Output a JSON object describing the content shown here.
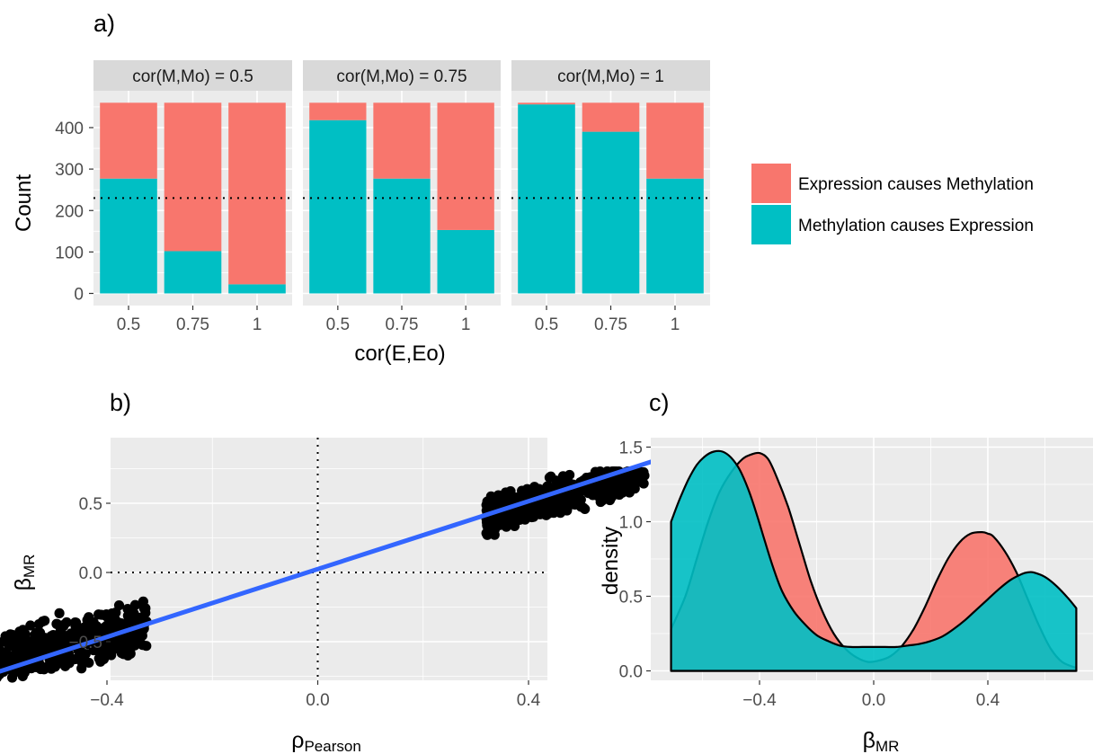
{
  "colors": {
    "expression_causes_methylation": "#F8766D",
    "methylation_causes_expression": "#00BFC4",
    "panel_background": "#EBEBEB",
    "grid": "#FFFFFF",
    "strip_background": "#D9D9D9",
    "fit_line": "#3366FF",
    "points": "#000000"
  },
  "tags": {
    "a": "a)",
    "b": "b)",
    "c": "c)"
  },
  "legend": {
    "items": [
      {
        "label": "Expression causes Methylation",
        "color": "#F8766D"
      },
      {
        "label": "Methylation causes Expression",
        "color": "#00BFC4"
      }
    ]
  },
  "chart_data": [
    {
      "id": "a",
      "type": "bar",
      "stacked": true,
      "xlabel": "cor(E,Eo)",
      "ylabel": "Count",
      "ylim": [
        0,
        460
      ],
      "yticks": [
        0,
        100,
        200,
        300,
        400
      ],
      "ytick_labels": [
        "0",
        "100",
        "200",
        "300",
        "400"
      ],
      "reference_line_y": 230,
      "categories": [
        "0.5",
        "0.75",
        "1"
      ],
      "facets": [
        {
          "label": "cor(M,Mo) = 0.5",
          "series": [
            {
              "name": "Methylation causes Expression",
              "values": [
                277,
                102,
                22
              ]
            },
            {
              "name": "Expression causes Methylation",
              "values": [
                183,
                358,
                438
              ]
            }
          ]
        },
        {
          "label": "cor(M,Mo) = 0.75",
          "series": [
            {
              "name": "Methylation causes Expression",
              "values": [
                418,
                277,
                153
              ]
            },
            {
              "name": "Expression causes Methylation",
              "values": [
                42,
                183,
                307
              ]
            }
          ]
        },
        {
          "label": "cor(M,Mo) = 1",
          "series": [
            {
              "name": "Methylation causes Expression",
              "values": [
                456,
                390,
                277
              ]
            },
            {
              "name": "Expression causes Methylation",
              "values": [
                4,
                70,
                183
              ]
            }
          ]
        }
      ]
    },
    {
      "id": "b",
      "type": "scatter",
      "xlabel_main": "ρ",
      "xlabel_sub": "Pearson",
      "ylabel_main": "β",
      "ylabel_sub": "MR",
      "xlim": [
        -0.68,
        0.73
      ],
      "ylim": [
        -0.82,
        0.9
      ],
      "xticks": [
        -0.4,
        0.0,
        0.4
      ],
      "xtick_labels": [
        "−0.4",
        "0.0",
        "0.4"
      ],
      "yticks": [
        -0.5,
        0.0,
        0.5
      ],
      "ytick_labels": [
        "−0.5",
        "0.0",
        "0.5"
      ],
      "reference_lines": {
        "x": 0.0,
        "y": 0.0
      },
      "fit_line": {
        "x": [
          -0.64,
          0.69
        ],
        "y": [
          -0.76,
          0.87
        ]
      },
      "clusters": [
        {
          "x_range": [
            -0.65,
            -0.32
          ],
          "y_center_slope": 0.9,
          "y_spread": 0.32,
          "n": 460
        },
        {
          "x_range": [
            0.31,
            0.7
          ],
          "y_center_slope": 1.05,
          "y_spread": 0.25,
          "n": 460
        }
      ]
    },
    {
      "id": "c",
      "type": "area",
      "subtype": "density",
      "xlabel_main": "β",
      "xlabel_sub": "MR",
      "ylabel": "density",
      "xlim": [
        -0.78,
        0.78
      ],
      "ylim": [
        -0.05,
        1.58
      ],
      "xticks": [
        -0.4,
        0.0,
        0.4
      ],
      "xtick_labels": [
        "−0.4",
        "0.0",
        "0.4"
      ],
      "yticks": [
        0.0,
        0.5,
        1.0,
        1.5
      ],
      "ytick_labels": [
        "0.0",
        "0.5",
        "1.0",
        "1.5"
      ],
      "series": [
        {
          "name": "Expression causes Methylation",
          "color": "#F8766D",
          "x": [
            -0.71,
            -0.66,
            -0.62,
            -0.58,
            -0.54,
            -0.5,
            -0.46,
            -0.43,
            -0.4,
            -0.37,
            -0.34,
            -0.3,
            -0.26,
            -0.22,
            -0.18,
            -0.14,
            -0.1,
            -0.06,
            -0.02,
            0.02,
            0.06,
            0.1,
            0.14,
            0.18,
            0.22,
            0.26,
            0.3,
            0.34,
            0.38,
            0.4,
            0.42,
            0.46,
            0.5,
            0.54,
            0.58,
            0.62,
            0.66,
            0.71
          ],
          "y": [
            0.28,
            0.5,
            0.75,
            1.0,
            1.2,
            1.33,
            1.42,
            1.45,
            1.46,
            1.42,
            1.3,
            1.1,
            0.85,
            0.6,
            0.4,
            0.25,
            0.15,
            0.09,
            0.06,
            0.07,
            0.1,
            0.17,
            0.28,
            0.43,
            0.6,
            0.75,
            0.86,
            0.92,
            0.93,
            0.92,
            0.9,
            0.8,
            0.66,
            0.48,
            0.3,
            0.15,
            0.06,
            0.02
          ]
        },
        {
          "name": "Methylation causes Expression",
          "color": "#00BFC4",
          "x": [
            -0.71,
            -0.68,
            -0.65,
            -0.62,
            -0.59,
            -0.56,
            -0.53,
            -0.5,
            -0.47,
            -0.44,
            -0.41,
            -0.38,
            -0.35,
            -0.32,
            -0.28,
            -0.24,
            -0.2,
            -0.16,
            -0.12,
            -0.08,
            -0.04,
            0.0,
            0.04,
            0.08,
            0.12,
            0.16,
            0.2,
            0.24,
            0.28,
            0.32,
            0.36,
            0.4,
            0.44,
            0.48,
            0.52,
            0.54,
            0.56,
            0.6,
            0.64,
            0.68,
            0.71
          ],
          "y": [
            1.0,
            1.15,
            1.28,
            1.38,
            1.44,
            1.47,
            1.47,
            1.43,
            1.35,
            1.22,
            1.05,
            0.86,
            0.68,
            0.53,
            0.4,
            0.31,
            0.24,
            0.2,
            0.17,
            0.16,
            0.16,
            0.16,
            0.16,
            0.16,
            0.17,
            0.18,
            0.2,
            0.23,
            0.28,
            0.34,
            0.41,
            0.48,
            0.55,
            0.61,
            0.65,
            0.66,
            0.66,
            0.63,
            0.57,
            0.49,
            0.42
          ]
        }
      ]
    }
  ]
}
